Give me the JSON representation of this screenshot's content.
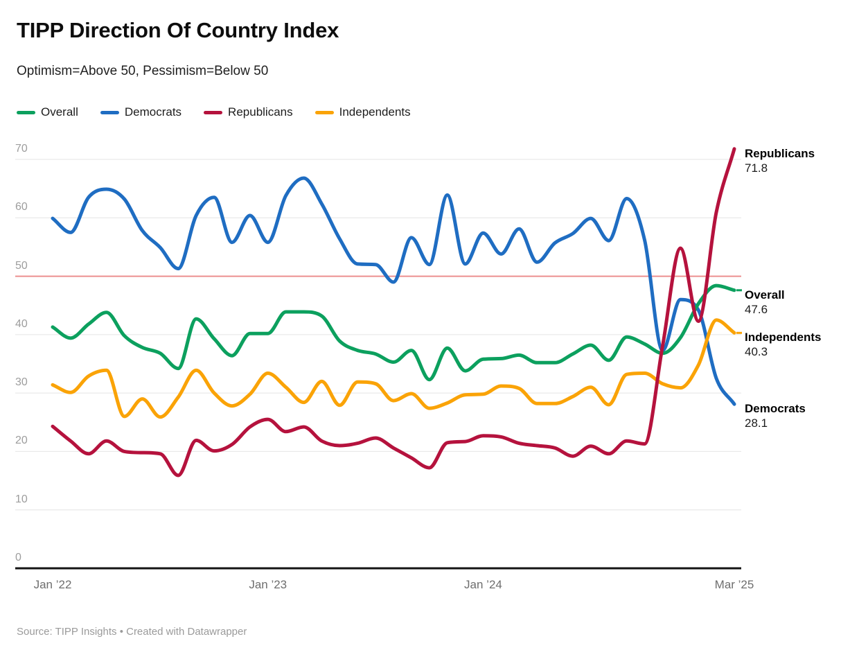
{
  "header": {
    "title": "TIPP Direction Of Country Index",
    "subtitle": "Optimism=Above 50, Pessimism=Below 50"
  },
  "legend": {
    "items": [
      {
        "label": "Overall"
      },
      {
        "label": "Democrats"
      },
      {
        "label": "Republicans"
      },
      {
        "label": "Independents"
      }
    ]
  },
  "footer": {
    "source": "Source: TIPP Insights • Created with Datawrapper"
  },
  "chart_data": {
    "type": "line",
    "title": "TIPP Direction Of Country Index",
    "subtitle": "Optimism=Above 50, Pessimism=Below 50",
    "ylim": [
      0,
      70
    ],
    "yticks": [
      70,
      60,
      50,
      40,
      30,
      20,
      10,
      0
    ],
    "reference_line": {
      "value": 50,
      "color": "#ec8f8f",
      "meaning": "Optimism above 50, pessimism below 50"
    },
    "grid": true,
    "legend_position": "top-left",
    "x": [
      "Jan ’22",
      "Feb ’22",
      "Mar ’22",
      "Apr ’22",
      "May ’22",
      "Jun ’22",
      "Jul ’22",
      "Aug ’22",
      "Sep ’22",
      "Oct ’22",
      "Nov ’22",
      "Dec ’22",
      "Jan ’23",
      "Feb ’23",
      "Mar ’23",
      "Apr ’23",
      "May ’23",
      "Jun ’23",
      "Jul ’23",
      "Aug ’23",
      "Sep ’23",
      "Oct ’23",
      "Nov ’23",
      "Dec ’23",
      "Jan ’24",
      "Feb ’24",
      "Mar ’24",
      "Apr ’24",
      "May ’24",
      "Jun ’24",
      "Jul ’24",
      "Aug ’24",
      "Sep ’24",
      "Oct ’24",
      "Nov ’24",
      "Dec ’24",
      "Jan ’25",
      "Feb ’25",
      "Mar ’25"
    ],
    "xticks": [
      {
        "month_index": 0,
        "label": "Jan ’22"
      },
      {
        "month_index": 12,
        "label": "Jan ’23"
      },
      {
        "month_index": 24,
        "label": "Jan ’24"
      },
      {
        "month_index": 38,
        "label": "Mar ’25"
      }
    ],
    "series": [
      {
        "name": "Democrats",
        "color": "#1f6dc2",
        "end_value": "28.1",
        "end_dash": false,
        "values": [
          59.9,
          57.5,
          63.5,
          64.9,
          63.2,
          57.8,
          54.9,
          51.3,
          60.4,
          63.5,
          55.8,
          60.4,
          55.8,
          63.8,
          66.8,
          62.4,
          56.4,
          52.1,
          52.0,
          49.0,
          56.6,
          52.0,
          63.9,
          52.1,
          57.4,
          53.8,
          58.1,
          52.4,
          55.7,
          57.3,
          59.9,
          56.1,
          63.3,
          56.2,
          37.3,
          46.0,
          44.2,
          32.5,
          28.1
        ]
      },
      {
        "name": "Overall",
        "color": "#0ca05e",
        "end_value": "47.6",
        "end_dash": true,
        "values": [
          41.3,
          39.4,
          41.8,
          43.8,
          39.8,
          37.8,
          36.8,
          34.2,
          42.7,
          39.3,
          36.4,
          40.2,
          40.2,
          43.9,
          43.9,
          43.2,
          38.9,
          37.3,
          36.7,
          35.3,
          37.3,
          32.3,
          37.7,
          33.8,
          35.8,
          35.9,
          36.5,
          35.2,
          35.2,
          36.7,
          38.2,
          35.6,
          39.6,
          38.4,
          36.8,
          39.5,
          45.3,
          48.4,
          47.6
        ]
      },
      {
        "name": "Independents",
        "color": "#faa307",
        "end_value": "40.3",
        "end_dash": true,
        "values": [
          31.4,
          30.1,
          32.9,
          33.9,
          26.0,
          29.0,
          25.9,
          29.3,
          33.9,
          30.0,
          27.8,
          29.8,
          33.4,
          31.0,
          28.4,
          32.0,
          27.9,
          31.9,
          31.6,
          28.7,
          29.9,
          27.4,
          28.3,
          29.7,
          29.8,
          31.2,
          30.8,
          28.2,
          28.2,
          29.4,
          31.0,
          28.0,
          33.2,
          33.4,
          31.6,
          30.9,
          34.8,
          42.5,
          40.3
        ]
      },
      {
        "name": "Republicans",
        "color": "#b5123d",
        "end_value": "71.8",
        "end_dash": false,
        "values": [
          24.3,
          21.8,
          19.6,
          21.8,
          20.0,
          19.8,
          19.6,
          15.9,
          21.9,
          20.1,
          21.2,
          24.2,
          25.5,
          23.4,
          24.2,
          21.8,
          21.0,
          21.4,
          22.3,
          20.6,
          18.9,
          17.2,
          21.5,
          21.7,
          22.7,
          22.5,
          21.4,
          21.0,
          20.6,
          19.2,
          20.9,
          19.6,
          21.8,
          21.3,
          38.0,
          54.8,
          42.3,
          61.0,
          71.8
        ]
      }
    ],
    "end_label_order": [
      "Republicans",
      "Overall",
      "Independents",
      "Democrats"
    ]
  }
}
